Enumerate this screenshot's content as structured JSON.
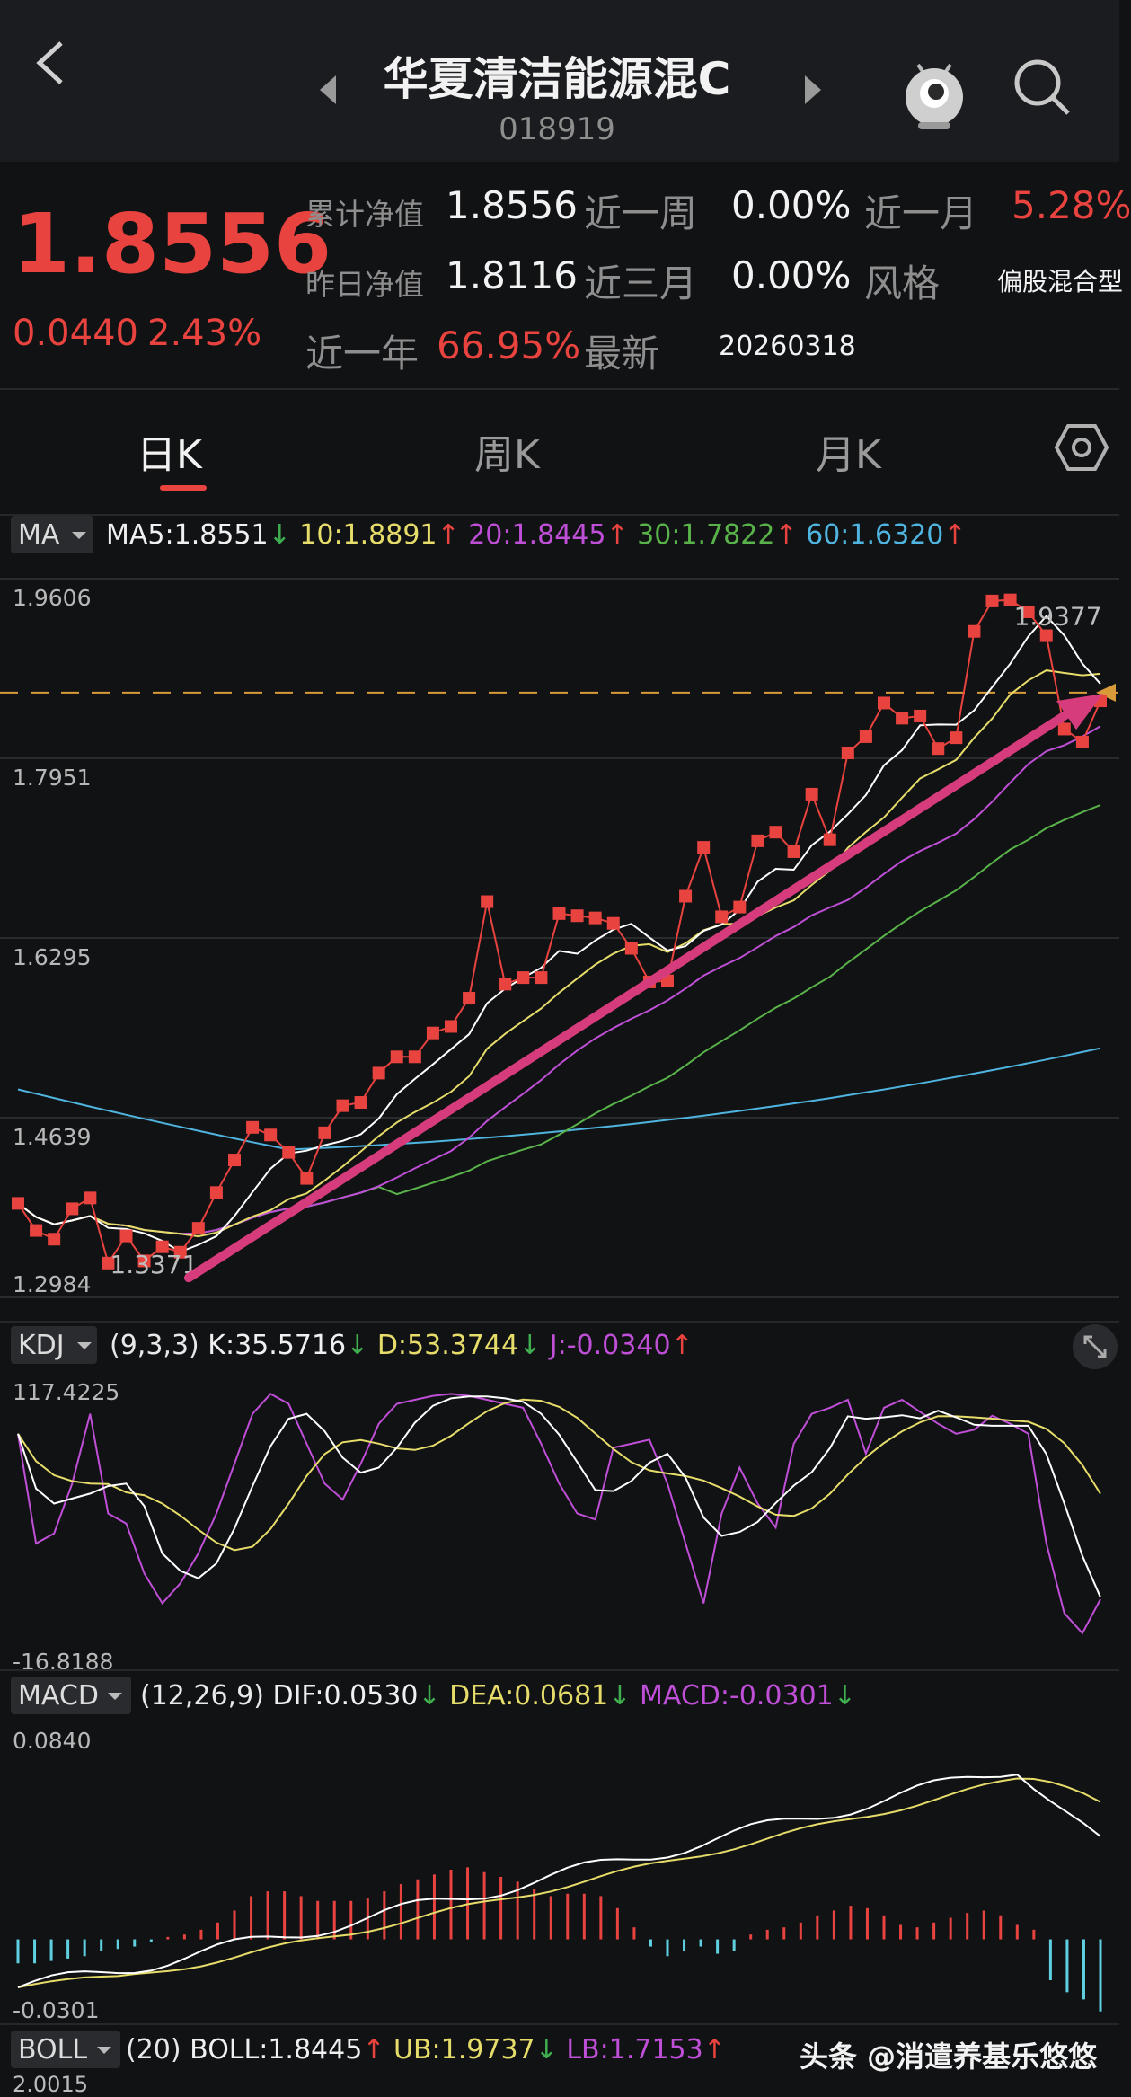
{
  "header": {
    "title": "华夏清洁能源混C",
    "code": "018919"
  },
  "quote": {
    "price": "1.8556",
    "change": "0.0440",
    "change_pct": "2.43%",
    "cum_nav_label": "累计净值",
    "cum_nav": "1.8556",
    "prev_nav_label": "昨日净值",
    "prev_nav": "1.8116",
    "week_label": "近一周",
    "week": "0.00%",
    "month_label": "近一月",
    "month": "5.28%",
    "q3_label": "近三月",
    "q3": "0.00%",
    "style_label": "风格",
    "style": "偏股混合型",
    "year_label": "近一年",
    "year": "66.95%",
    "latest_label": "最新",
    "latest": "20260318"
  },
  "tabs": [
    {
      "label": "日K",
      "active": true
    },
    {
      "label": "周K",
      "active": false
    },
    {
      "label": "月K",
      "active": false
    }
  ],
  "ma_bar": {
    "selector": "MA",
    "ma5": "MA5:1.8551",
    "ma10": "10:1.8891",
    "ma20": "20:1.8445",
    "ma30": "30:1.7822",
    "ma60": "60:1.6320"
  },
  "kdj_bar": {
    "selector": "KDJ",
    "params": "(9,3,3)",
    "k": "K:35.5716",
    "d": "D:53.3744",
    "j": "J:-0.0340"
  },
  "macd_bar": {
    "selector": "MACD",
    "params": "(12,26,9)",
    "dif": "DIF:0.0530",
    "dea": "DEA:0.0681",
    "macd": "MACD:-0.0301"
  },
  "boll_bar": {
    "selector": "BOLL",
    "params": "(20)",
    "boll": "BOLL:1.8445",
    "ub": "UB:1.9737",
    "lb": "LB:1.7153",
    "bottom_label": "2.0015"
  },
  "watermark": "头条 @消遣养基乐悠悠",
  "colors": {
    "red": "#e8433f",
    "green": "#3fae4f",
    "ma5": "#ffffff",
    "ma10": "#e6dc6a",
    "ma20": "#c04fd8",
    "ma30": "#59b34a",
    "ma60": "#4fb5e0",
    "arrow": "#d63c7c"
  },
  "chart_data": [
    {
      "type": "line",
      "title": "",
      "y_ticks": [
        "1.9606",
        "1.7951",
        "1.6295",
        "1.4639",
        "1.2984"
      ],
      "ylim": [
        1.2984,
        1.9606
      ],
      "reference_line": 1.8556,
      "annotations": [
        {
          "text": "1.9377"
        },
        {
          "text": "1.3371"
        }
      ],
      "series": [
        {
          "name": "净值",
          "values": [
            1.385,
            1.36,
            1.352,
            1.38,
            1.39,
            1.33,
            1.355,
            1.332,
            1.345,
            1.34,
            1.362,
            1.395,
            1.425,
            1.455,
            1.448,
            1.432,
            1.408,
            1.45,
            1.475,
            1.478,
            1.505,
            1.52,
            1.52,
            1.542,
            1.548,
            1.574,
            1.663,
            1.587,
            1.593,
            1.593,
            1.652,
            1.65,
            1.648,
            1.643,
            1.62,
            1.589,
            1.59,
            1.668,
            1.713,
            1.649,
            1.658,
            1.719,
            1.727,
            1.709,
            1.762,
            1.72,
            1.8,
            1.815,
            1.846,
            1.832,
            1.834,
            1.804,
            1.814,
            1.912,
            1.94,
            1.941,
            1.93,
            1.908,
            1.822,
            1.81,
            1.848
          ]
        }
      ]
    },
    {
      "type": "line",
      "title": "",
      "y_ticks": [
        "117.4225",
        "-16.8188"
      ],
      "ylim": [
        -16.8188,
        117.4225
      ]
    },
    {
      "type": "bar",
      "title": "",
      "y_ticks": [
        "0.0840",
        "-0.0301"
      ],
      "ylim": [
        -0.0301,
        0.084
      ],
      "values": [
        -0.01,
        -0.01,
        -0.009,
        -0.008,
        -0.007,
        -0.005,
        -0.004,
        -0.003,
        -0.001,
        0.001,
        0.002,
        0.004,
        0.007,
        0.012,
        0.018,
        0.02,
        0.02,
        0.018,
        0.016,
        0.016,
        0.016,
        0.017,
        0.02,
        0.023,
        0.025,
        0.027,
        0.029,
        0.03,
        0.028,
        0.026,
        0.024,
        0.021,
        0.018,
        0.019,
        0.019,
        0.018,
        0.013,
        0.005,
        -0.003,
        -0.007,
        -0.005,
        -0.003,
        -0.006,
        -0.005,
        0.002,
        0.004,
        0.005,
        0.007,
        0.01,
        0.012,
        0.014,
        0.013,
        0.01,
        0.006,
        0.005,
        0.007,
        0.009,
        0.011,
        0.012,
        0.01,
        0.006,
        0.004,
        -0.017,
        -0.022,
        -0.025,
        -0.03
      ]
    }
  ]
}
